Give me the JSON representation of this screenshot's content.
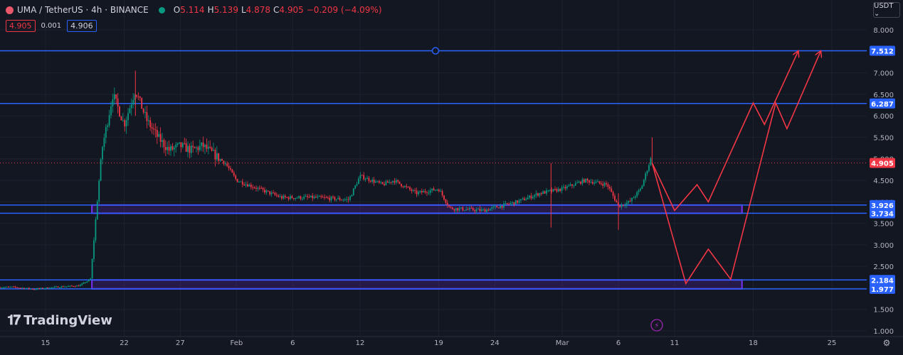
{
  "header": {
    "symbol": "UMA / TetherUS · 4h · BINANCE",
    "open_label": "O",
    "open": "5.114",
    "high_label": "H",
    "high": "5.139",
    "low_label": "L",
    "low": "4.878",
    "close_label": "C",
    "close": "4.905",
    "change": "−0.209 (−4.09%)",
    "bid": "4.905",
    "spread": "0.001",
    "ask": "4.906"
  },
  "currency_button": "USDT ⌄",
  "logo_text": "TradingView",
  "colors": {
    "background": "#131722",
    "up": "#089981",
    "down": "#f23645",
    "level_line": "#2962ff",
    "zone": "#7b2ff7",
    "projection": "#f23645"
  },
  "chart_data": {
    "type": "candlestick",
    "y_ticks": [
      "8.000",
      "7.500",
      "7.000",
      "6.500",
      "6.000",
      "5.500",
      "5.000",
      "4.500",
      "4.000",
      "3.500",
      "3.000",
      "2.500",
      "2.000",
      "1.500",
      "1.000"
    ],
    "y_range": [
      1.0,
      8.0
    ],
    "x_ticks": [
      "15",
      "22",
      "27",
      "Feb",
      "6",
      "12",
      "19",
      "24",
      "Mar",
      "6",
      "11",
      "18",
      "25"
    ],
    "levels": [
      {
        "label": "7.512",
        "value": 7.512
      },
      {
        "label": "6.287",
        "value": 6.287
      },
      {
        "label": "3.926",
        "value": 3.926
      },
      {
        "label": "3.734",
        "value": 3.734
      },
      {
        "label": "2.184",
        "value": 2.184
      },
      {
        "label": "1.977",
        "value": 1.977
      }
    ],
    "last_price": {
      "label": "4.905",
      "value": 4.905
    },
    "zones": [
      {
        "from": 3.734,
        "to": 3.926,
        "start": "Jan 19",
        "end": "Mar 17"
      },
      {
        "from": 1.977,
        "to": 2.184,
        "start": "Jan 19",
        "end": "Mar 17"
      }
    ],
    "price_path": [
      [
        "Jan 10",
        2.0
      ],
      [
        "Jan 12",
        2.02
      ],
      [
        "Jan 14",
        1.97
      ],
      [
        "Jan 16",
        2.02
      ],
      [
        "Jan 18",
        2.05
      ],
      [
        "Jan 19",
        2.2
      ],
      [
        "Jan 20",
        5.2
      ],
      [
        "Jan 21",
        6.5
      ],
      [
        "Jan 22",
        5.8
      ],
      [
        "Jan 23",
        6.6
      ],
      [
        "Jan 24",
        5.9
      ],
      [
        "Jan 25",
        5.5
      ],
      [
        "Jan 26",
        5.2
      ],
      [
        "Jan 27",
        5.3
      ],
      [
        "Jan 28",
        5.2
      ],
      [
        "Jan 29",
        5.3
      ],
      [
        "Jan 30",
        5.1
      ],
      [
        "Jan 31",
        4.9
      ],
      [
        "Feb 1",
        4.5
      ],
      [
        "Feb 3",
        4.3
      ],
      [
        "Feb 5",
        4.1
      ],
      [
        "Feb 8",
        4.1
      ],
      [
        "Feb 11",
        4.05
      ],
      [
        "Feb 12",
        4.6
      ],
      [
        "Feb 14",
        4.4
      ],
      [
        "Feb 15",
        4.5
      ],
      [
        "Feb 17",
        4.2
      ],
      [
        "Feb 19",
        4.3
      ],
      [
        "Feb 20",
        3.85
      ],
      [
        "Feb 23",
        3.8
      ],
      [
        "Feb 26",
        4.0
      ],
      [
        "Feb 28",
        4.2
      ],
      [
        "Mar 1",
        4.3
      ],
      [
        "Mar 3",
        4.5
      ],
      [
        "Mar 5",
        4.4
      ],
      [
        "Mar 6",
        3.9
      ],
      [
        "Mar 7",
        4.0
      ],
      [
        "Mar 8",
        4.3
      ],
      [
        "Mar 9",
        5.1
      ],
      [
        "Mar 9",
        4.905
      ]
    ],
    "projections": [
      [
        [
          "Mar 9",
          4.905
        ],
        [
          "Mar 11",
          3.8
        ],
        [
          "Mar 13",
          4.4
        ],
        [
          "Mar 14",
          4.0
        ],
        [
          "Mar 18",
          6.3
        ],
        [
          "Mar 19",
          5.8
        ],
        [
          "Mar 22",
          7.5
        ]
      ],
      [
        [
          "Mar 9",
          4.905
        ],
        [
          "Mar 12",
          2.1
        ],
        [
          "Mar 14",
          2.9
        ],
        [
          "Mar 16",
          2.2
        ],
        [
          "Mar 20",
          6.3
        ],
        [
          "Mar 21",
          5.7
        ],
        [
          "Mar 24",
          7.5
        ]
      ]
    ]
  }
}
